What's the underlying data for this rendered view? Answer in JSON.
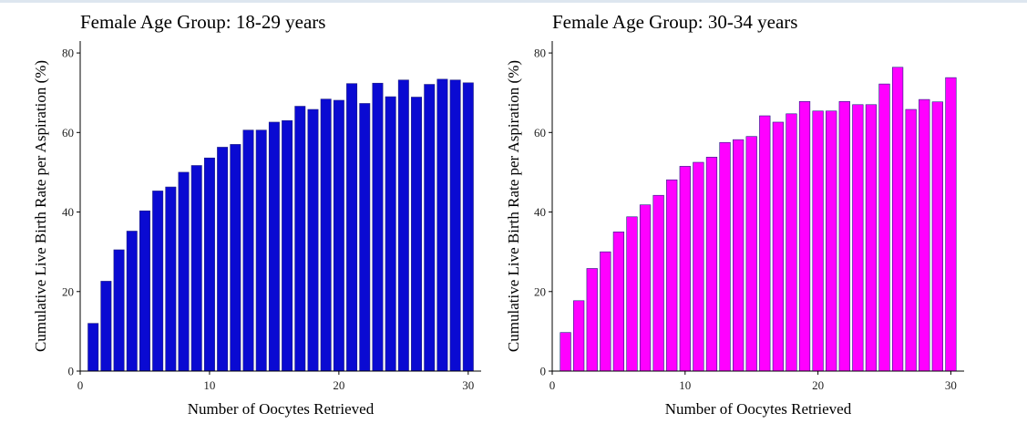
{
  "chart_data": [
    {
      "type": "bar",
      "title": "Female Age Group: 18-29 years",
      "xlabel": "Number of Oocytes Retrieved",
      "ylabel": "Cumulative Live Birth Rate per Aspiration (%)",
      "xlim": [
        0,
        31
      ],
      "ylim": [
        0,
        83
      ],
      "xticks": [
        0,
        10,
        20,
        30
      ],
      "yticks": [
        0,
        20,
        40,
        60,
        80
      ],
      "color": "#0a0ad2",
      "x": [
        1,
        2,
        3,
        4,
        5,
        6,
        7,
        8,
        9,
        10,
        11,
        12,
        13,
        14,
        15,
        16,
        17,
        18,
        19,
        20,
        21,
        22,
        23,
        24,
        25,
        26,
        27,
        28,
        29,
        30
      ],
      "values": [
        12.0,
        22.6,
        30.5,
        35.2,
        40.3,
        45.3,
        46.3,
        50.0,
        51.7,
        53.6,
        56.3,
        57.0,
        60.6,
        60.6,
        62.6,
        63.0,
        66.6,
        65.8,
        68.4,
        68.1,
        72.3,
        67.3,
        72.4,
        69.0,
        73.2,
        68.9,
        72.1,
        73.4,
        73.2,
        72.5
      ],
      "grid": false,
      "legend": "none"
    },
    {
      "type": "bar",
      "title": "Female Age Group: 30-34 years",
      "xlabel": "Number of Oocytes Retrieved",
      "ylabel": "Cumulative Live Birth Rate per Aspiration (%)",
      "xlim": [
        0,
        31
      ],
      "ylim": [
        0,
        83
      ],
      "xticks": [
        0,
        10,
        20,
        30
      ],
      "yticks": [
        0,
        20,
        40,
        60,
        80
      ],
      "color": "#ff00ff",
      "x": [
        1,
        2,
        3,
        4,
        5,
        6,
        7,
        8,
        9,
        10,
        11,
        12,
        13,
        14,
        15,
        16,
        17,
        18,
        19,
        20,
        21,
        22,
        23,
        24,
        25,
        26,
        27,
        28,
        29,
        30
      ],
      "values": [
        9.7,
        17.7,
        25.8,
        30.0,
        35.0,
        38.8,
        41.8,
        44.2,
        48.1,
        51.5,
        52.5,
        53.8,
        57.5,
        58.2,
        59.0,
        64.2,
        62.6,
        64.7,
        67.8,
        65.4,
        65.4,
        67.8,
        67.0,
        67.0,
        72.2,
        76.4,
        65.8,
        68.3,
        67.7,
        73.8
      ],
      "grid": false,
      "legend": "none"
    }
  ]
}
